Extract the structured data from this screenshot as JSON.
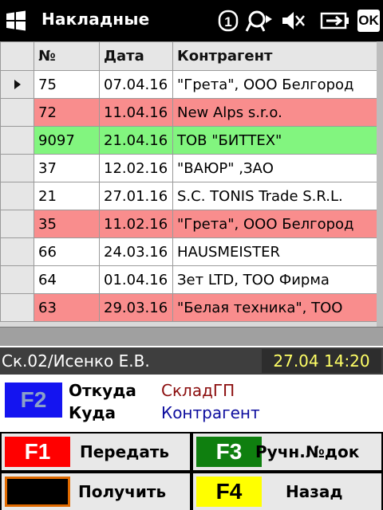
{
  "titlebar": {
    "title": "Накладные",
    "ok_label": "OK",
    "icons": [
      "windows-logo-icon",
      "data-connection-1-icon",
      "sync-icon",
      "volume-muted-icon",
      "battery-charging-icon"
    ]
  },
  "grid": {
    "columns": [
      "№",
      "Дата",
      "Контрагент"
    ],
    "rows": [
      {
        "num": "75",
        "date": "07.04.16",
        "party": "\"Грета\", ООО Белгород",
        "status": "white",
        "current": true
      },
      {
        "num": "72",
        "date": "11.04.16",
        "party": "New Alps s.r.o.",
        "status": "red"
      },
      {
        "num": "9097",
        "date": "21.04.16",
        "party": "ТОВ \"БИТТЕХ\"",
        "status": "green"
      },
      {
        "num": "37",
        "date": "12.02.16",
        "party": "\"ВАЮР\" ,ЗАО",
        "status": "white"
      },
      {
        "num": "21",
        "date": "27.01.16",
        "party": "S.C. TONIS Trade S.R.L.",
        "status": "white"
      },
      {
        "num": "35",
        "date": "11.02.16",
        "party": "\"Грета\", ООО Белгород",
        "status": "red"
      },
      {
        "num": "66",
        "date": "24.03.16",
        "party": "HAUSMEISTER",
        "status": "white"
      },
      {
        "num": "64",
        "date": "01.04.16",
        "party": "Зет LTD, ТОО Фирма",
        "status": "white"
      },
      {
        "num": "63",
        "date": "29.03.16",
        "party": "\"Белая техника\", ТОО",
        "status": "red"
      }
    ]
  },
  "status": {
    "user": "Ск.02/Исенко Е.В.",
    "datetime": "27.04 14:20"
  },
  "route": {
    "key": "F2",
    "from_label": "Откуда",
    "from_value": "СкладГП",
    "to_label": "Куда",
    "to_value": "Контрагент"
  },
  "buttons": {
    "f1": {
      "key": "F1",
      "label": "Передать"
    },
    "f3": {
      "key": "F3",
      "label": "Ручн.№док"
    },
    "receive": {
      "key": "",
      "label": "Получить"
    },
    "f4": {
      "key": "F4",
      "label": "Назад"
    }
  },
  "colors": {
    "row_red": "#f98d8d",
    "row_green": "#82f57f",
    "clock_text": "#ffff66",
    "f1_key": "#ff0000",
    "f2_key": "#1414f0",
    "f3_key": "#0f7f0f",
    "f4_key": "#ffff00",
    "receive_key_border": "#e06a00"
  }
}
